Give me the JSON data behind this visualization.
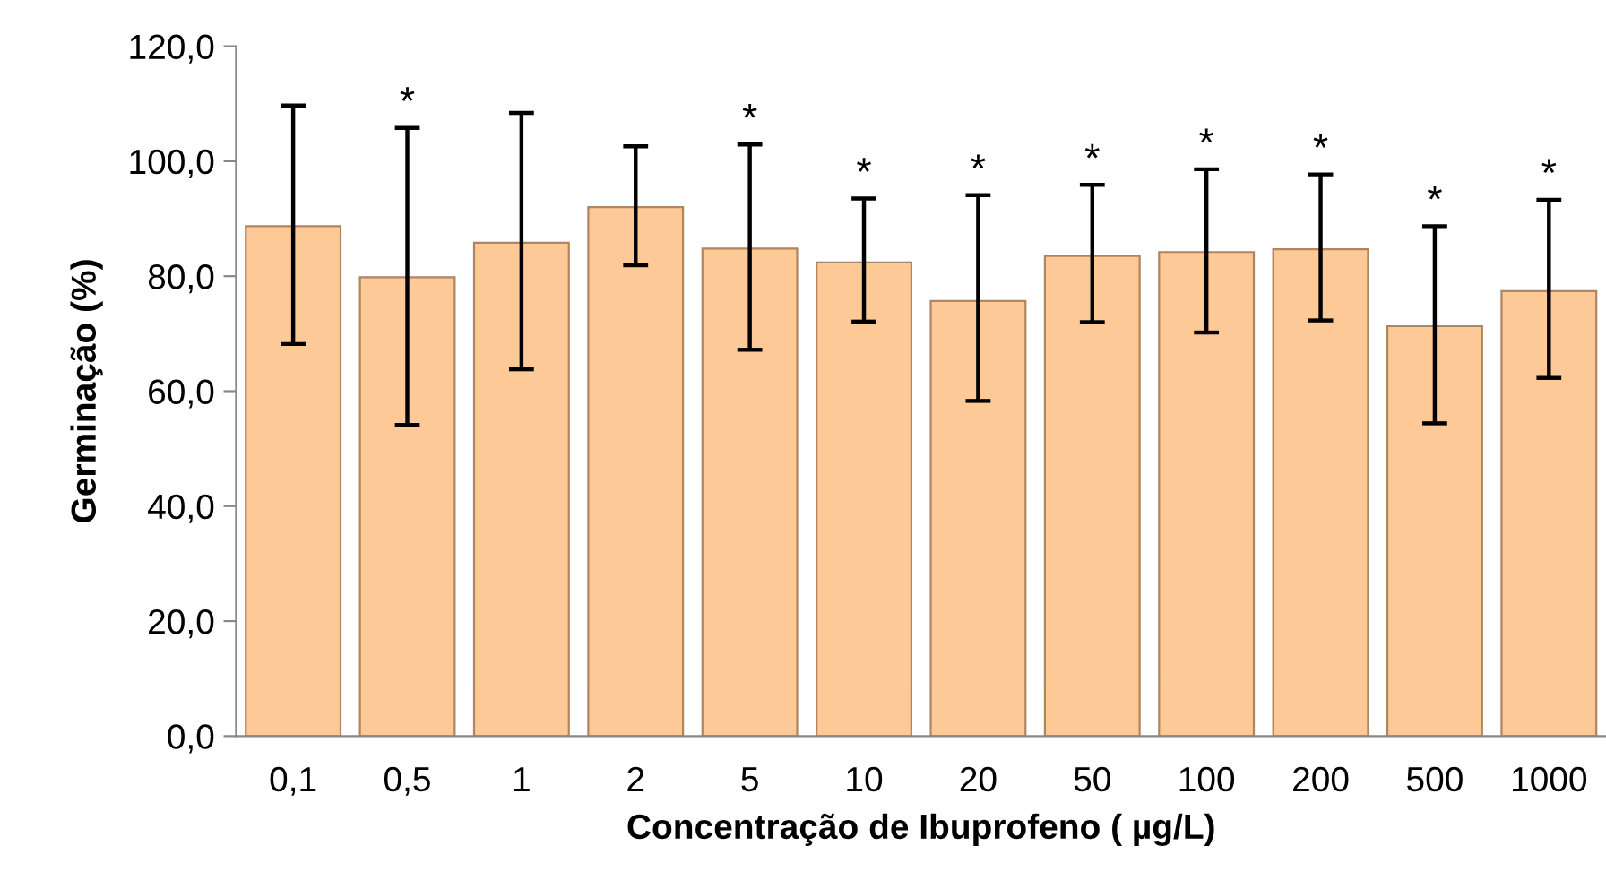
{
  "chart_data": {
    "type": "bar",
    "xlabel": "Concentração de Ibuprofeno ( µg/L)",
    "ylabel": "Germinação (%)",
    "categories": [
      "0,1",
      "0,5",
      "1",
      "2",
      "5",
      "10",
      "20",
      "50",
      "100",
      "200",
      "500",
      "1000"
    ],
    "values": [
      88.7,
      79.8,
      85.8,
      92.0,
      84.8,
      82.4,
      75.7,
      83.5,
      84.2,
      84.7,
      71.3,
      77.4
    ],
    "errors": [
      [
        68.2,
        109.7
      ],
      [
        54.1,
        105.8
      ],
      [
        63.8,
        108.4
      ],
      [
        81.9,
        102.6
      ],
      [
        67.2,
        102.9
      ],
      [
        72.1,
        93.5
      ],
      [
        58.3,
        94.1
      ],
      [
        72.0,
        95.9
      ],
      [
        70.2,
        98.6
      ],
      [
        72.3,
        97.7
      ],
      [
        54.4,
        88.7
      ],
      [
        62.3,
        93.3
      ]
    ],
    "color": "#fdc997",
    "ylim": [
      0,
      120
    ],
    "yticks": [
      {
        "value": 0,
        "label": "0,0"
      },
      {
        "value": 20,
        "label": "20,0"
      },
      {
        "value": 40,
        "label": "40,0"
      },
      {
        "value": 60,
        "label": "60,0"
      },
      {
        "value": 80,
        "label": "80,0"
      },
      {
        "value": 100,
        "label": "100,0"
      },
      {
        "value": 120,
        "label": "120,0"
      }
    ],
    "grid": false,
    "annotations": [
      {
        "text": "*",
        "x": "0,5",
        "y": 105.8
      },
      {
        "text": "*",
        "x": "5",
        "y": 102.9
      },
      {
        "text": "*",
        "x": "10",
        "y": 93.5
      },
      {
        "text": "*",
        "x": "20",
        "y": 94.1
      },
      {
        "text": "*",
        "x": "50",
        "y": 95.9
      },
      {
        "text": "*",
        "x": "100",
        "y": 98.6
      },
      {
        "text": "*",
        "x": "200",
        "y": 97.7
      },
      {
        "text": "*",
        "x": "500",
        "y": 88.7
      },
      {
        "text": "*",
        "x": "1000",
        "y": 93.3
      }
    ]
  }
}
